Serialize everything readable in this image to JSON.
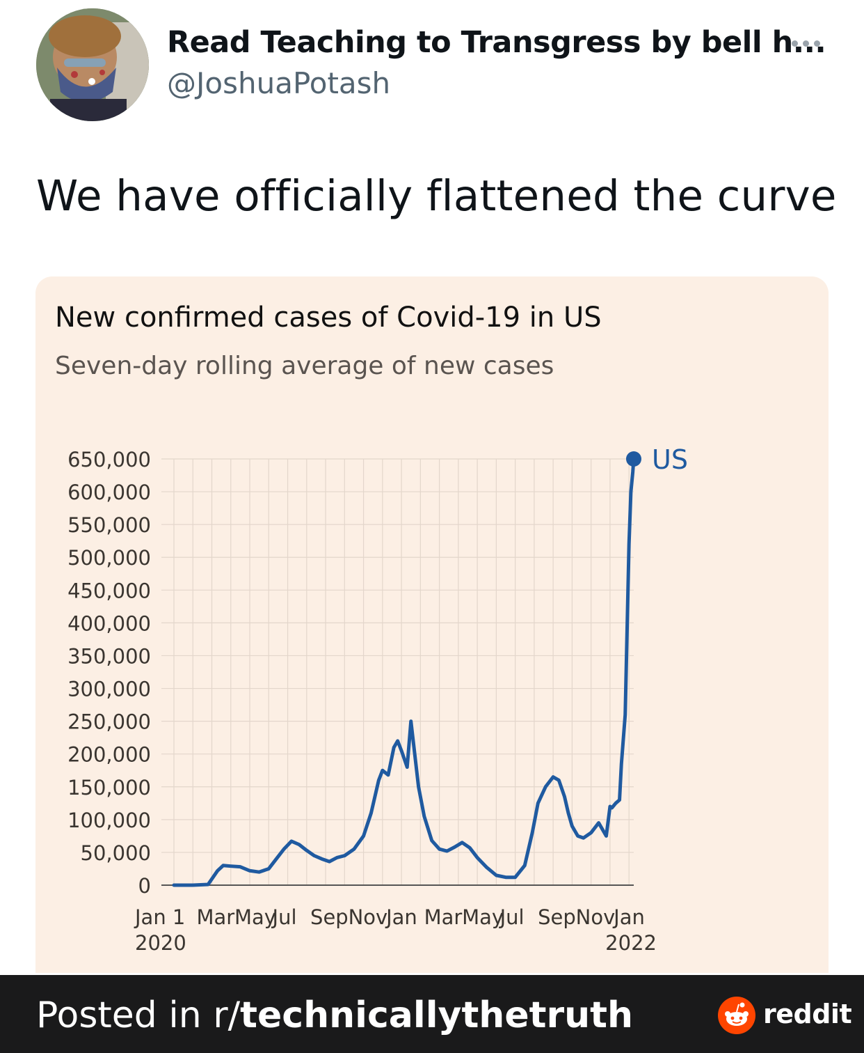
{
  "tweet": {
    "display_name": "Read Teaching to Transgress by bell h...",
    "handle": "@JoshuaPotash",
    "more_icon": "more-horizontal-icon",
    "text": "We have officially flattened the curve"
  },
  "chart_data": {
    "type": "line",
    "title": "New confirmed cases of Covid-19 in US",
    "subtitle": "Seven-day rolling average of new cases",
    "xlabel": "",
    "ylabel": "",
    "ylim": [
      0,
      650000
    ],
    "yticks": [
      "0",
      "50,000",
      "100,000",
      "150,000",
      "200,000",
      "250,000",
      "300,000",
      "350,000",
      "400,000",
      "450,000",
      "500,000",
      "550,000",
      "600,000",
      "650,000"
    ],
    "xticks": [
      {
        "label": "Jan 1",
        "month": 0
      },
      {
        "label": "Mar",
        "month": 2
      },
      {
        "label": "May",
        "month": 4
      },
      {
        "label": "Jul",
        "month": 6
      },
      {
        "label": "Sep",
        "month": 8
      },
      {
        "label": "Nov",
        "month": 10
      },
      {
        "label": "Jan",
        "month": 12
      },
      {
        "label": "Mar",
        "month": 14
      },
      {
        "label": "May",
        "month": 16
      },
      {
        "label": "Jul",
        "month": 18
      },
      {
        "label": "Sep",
        "month": 20
      },
      {
        "label": "Nov",
        "month": 22
      },
      {
        "label": "Jan",
        "month": 24
      }
    ],
    "year_labels": [
      {
        "label": "2020",
        "month": 0
      },
      {
        "label": "2022",
        "month": 24
      }
    ],
    "series": [
      {
        "name": "US",
        "color": "#1f5aa0",
        "x": [
          0,
          1.0,
          1.8,
          2.3,
          2.6,
          3.0,
          3.5,
          4.0,
          4.5,
          5.0,
          5.4,
          5.8,
          6.2,
          6.6,
          7.0,
          7.4,
          7.8,
          8.2,
          8.6,
          9.0,
          9.5,
          10.0,
          10.4,
          10.8,
          11.0,
          11.3,
          11.6,
          11.8,
          12.0,
          12.3,
          12.5,
          12.7,
          12.9,
          13.2,
          13.6,
          14.0,
          14.4,
          14.8,
          15.2,
          15.6,
          16.0,
          16.5,
          17.0,
          17.5,
          18.0,
          18.5,
          18.9,
          19.2,
          19.6,
          20.0,
          20.3,
          20.6,
          20.8,
          21.0,
          21.3,
          21.6,
          22.0,
          22.4,
          22.8,
          23.0,
          23.1,
          23.3,
          23.5,
          23.6,
          23.8,
          23.9,
          24.0,
          24.1,
          24.2,
          24.25
        ],
        "values": [
          0,
          0,
          1000,
          22000,
          30000,
          29000,
          28000,
          22000,
          20000,
          25000,
          40000,
          55000,
          67000,
          62000,
          53000,
          45000,
          40000,
          36000,
          42000,
          45000,
          55000,
          75000,
          110000,
          160000,
          175000,
          168000,
          210000,
          220000,
          205000,
          180000,
          250000,
          200000,
          150000,
          105000,
          68000,
          55000,
          52000,
          58000,
          65000,
          57000,
          42000,
          27000,
          15000,
          12000,
          12000,
          30000,
          80000,
          125000,
          150000,
          165000,
          160000,
          135000,
          110000,
          90000,
          75000,
          72000,
          80000,
          95000,
          75000,
          120000,
          118000,
          125000,
          130000,
          185000,
          260000,
          390000,
          520000,
          600000,
          630000,
          650000
        ]
      }
    ],
    "legend": "end-of-line label",
    "grid": true
  },
  "footer": {
    "posted_prefix": "Posted in r/",
    "subreddit": "technicallythetruth",
    "brand": "reddit",
    "brand_icon": "reddit-snoo-icon"
  }
}
